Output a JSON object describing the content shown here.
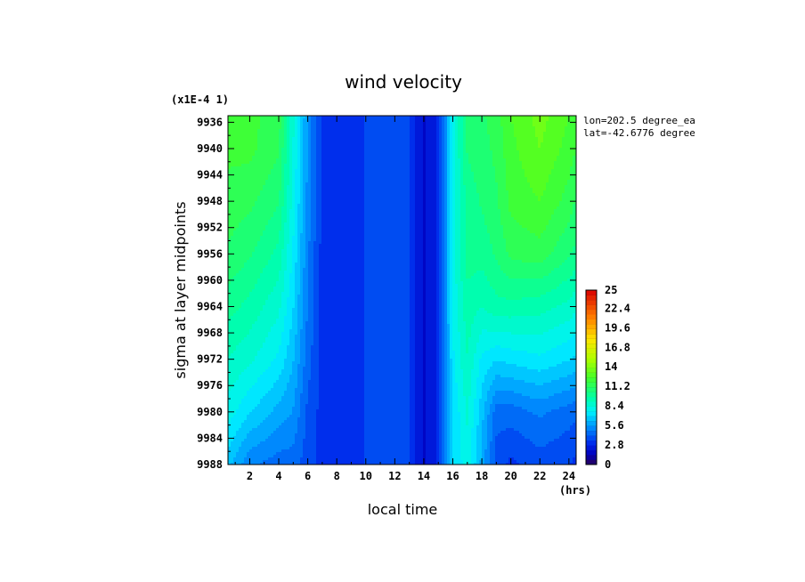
{
  "chart_data": {
    "type": "heatmap",
    "title": "wind velocity",
    "xlabel": "local time",
    "ylabel": "sigma at layer midpoints",
    "x_unit": "(hrs)",
    "y_scale_note": "(x1E-4 1)",
    "annotation_lines": [
      "lon=202.5 degree_ea",
      "lat=-42.6776 degree"
    ],
    "x_ticks": [
      2,
      4,
      6,
      8,
      10,
      12,
      14,
      16,
      18,
      20,
      22,
      24
    ],
    "y_ticks": [
      "9936",
      "9940",
      "9944",
      "9948",
      "9952",
      "9956",
      "9960",
      "9964",
      "9968",
      "9972",
      "9976",
      "9980",
      "9984",
      "9988"
    ],
    "xlim": [
      0.5,
      24.5
    ],
    "ylim": [
      9988,
      9935
    ],
    "colorbar": {
      "ticks": [
        "0",
        "2.8",
        "5.6",
        "8.4",
        "11.2",
        "14",
        "16.8",
        "19.6",
        "22.4",
        "25"
      ],
      "min": 0,
      "max": 25
    },
    "x": [
      0.5,
      2,
      4,
      5,
      6,
      7,
      8,
      10,
      12,
      13,
      14,
      15,
      16,
      17,
      18,
      19,
      20,
      22,
      24,
      24.5
    ],
    "y": [
      9935,
      9940,
      9948,
      9956,
      9964,
      9972,
      9980,
      9988
    ],
    "z": [
      [
        12.0,
        12.0,
        11.5,
        8.5,
        5.5,
        3.2,
        3.2,
        3.5,
        3.8,
        3.5,
        2.0,
        3.0,
        8.0,
        10.5,
        11.0,
        11.5,
        12.5,
        13.5,
        12.5,
        12.0
      ],
      [
        12.0,
        12.0,
        11.2,
        8.3,
        5.5,
        3.2,
        3.2,
        3.5,
        3.8,
        3.5,
        2.0,
        3.0,
        8.0,
        10.5,
        10.8,
        11.3,
        12.3,
        13.2,
        12.2,
        11.8
      ],
      [
        11.5,
        11.3,
        10.5,
        8.0,
        5.3,
        3.2,
        3.2,
        3.5,
        3.8,
        3.5,
        2.0,
        3.0,
        8.0,
        10.0,
        10.5,
        11.0,
        12.0,
        12.5,
        11.5,
        11.0
      ],
      [
        11.0,
        10.5,
        9.5,
        7.5,
        5.0,
        3.2,
        3.2,
        3.5,
        3.8,
        3.5,
        2.0,
        3.0,
        8.0,
        10.0,
        10.0,
        10.5,
        11.3,
        11.5,
        10.5,
        10.2
      ],
      [
        10.0,
        9.5,
        8.5,
        7.0,
        4.8,
        3.2,
        3.2,
        3.5,
        3.8,
        3.5,
        2.0,
        3.0,
        7.8,
        9.5,
        9.0,
        9.5,
        9.5,
        9.3,
        8.8,
        8.5
      ],
      [
        9.0,
        8.5,
        7.5,
        6.3,
        4.5,
        3.2,
        3.2,
        3.5,
        3.8,
        3.5,
        2.0,
        3.0,
        7.5,
        9.0,
        7.5,
        7.0,
        7.2,
        7.5,
        7.0,
        6.8
      ],
      [
        8.0,
        7.0,
        6.0,
        5.5,
        4.0,
        3.2,
        3.2,
        3.5,
        3.8,
        3.5,
        2.0,
        3.0,
        7.0,
        8.5,
        6.5,
        4.5,
        4.5,
        5.0,
        4.5,
        4.3
      ],
      [
        6.5,
        5.0,
        4.5,
        4.5,
        3.8,
        3.2,
        3.2,
        3.5,
        3.8,
        3.5,
        2.0,
        3.0,
        7.0,
        8.0,
        6.0,
        3.8,
        3.3,
        3.8,
        3.5,
        3.3
      ]
    ]
  }
}
